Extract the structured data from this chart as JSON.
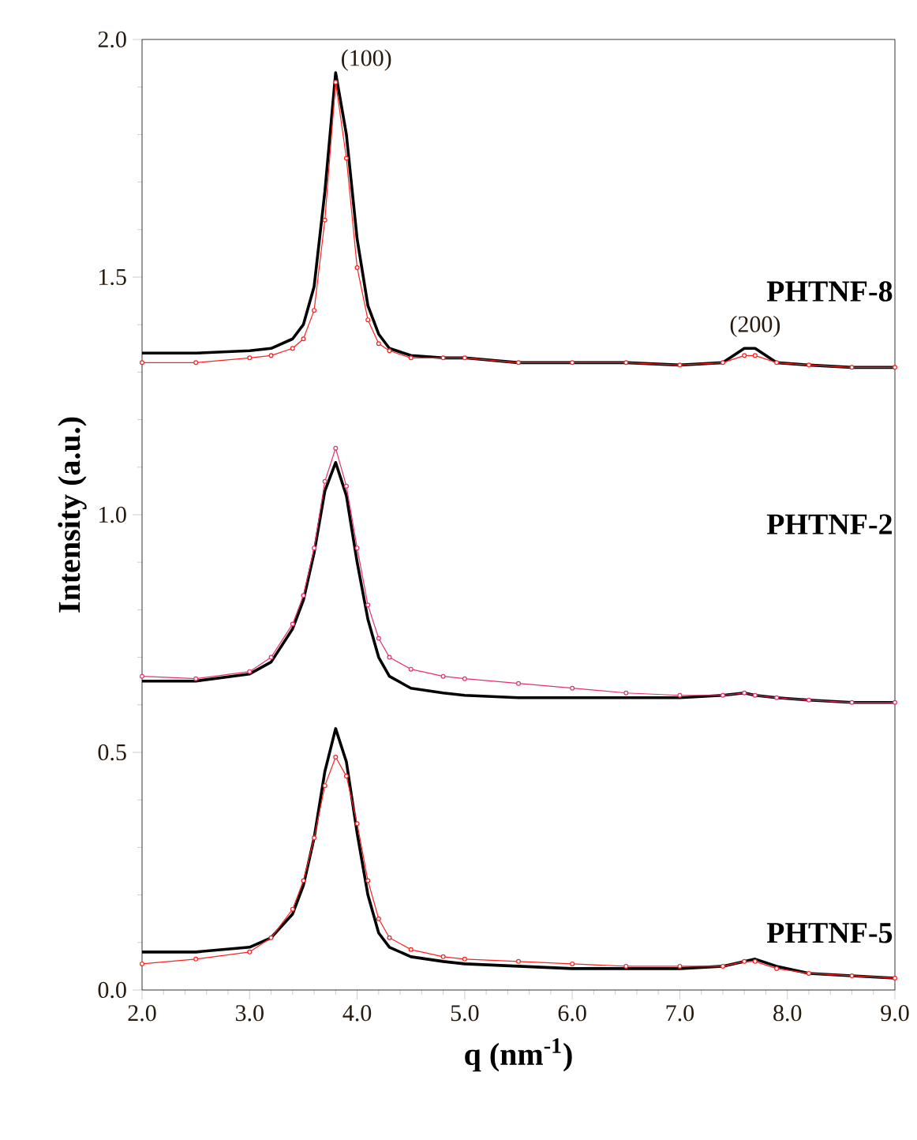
{
  "chart_data": {
    "type": "line",
    "xlabel": "q (nm$^{-1}$)",
    "ylabel": "Intensity (a.u.)",
    "x": [
      2.0,
      2.5,
      3.0,
      3.2,
      3.4,
      3.5,
      3.6,
      3.7,
      3.8,
      3.9,
      4.0,
      4.1,
      4.2,
      4.3,
      4.5,
      4.8,
      5.0,
      5.5,
      6.0,
      6.5,
      7.0,
      7.4,
      7.6,
      7.7,
      7.9,
      8.2,
      8.6,
      9.0
    ],
    "series": [
      {
        "color": "#000000",
        "marker": "none",
        "values": [
          1.34,
          1.34,
          1.345,
          1.35,
          1.37,
          1.4,
          1.48,
          1.68,
          1.93,
          1.8,
          1.58,
          1.44,
          1.38,
          1.35,
          1.335,
          1.33,
          1.33,
          1.32,
          1.32,
          1.32,
          1.315,
          1.32,
          1.35,
          1.35,
          1.32,
          1.315,
          1.31,
          1.31
        ]
      },
      {
        "color": "#ff2020",
        "marker": "circle",
        "values": [
          1.32,
          1.32,
          1.33,
          1.335,
          1.35,
          1.37,
          1.43,
          1.62,
          1.91,
          1.75,
          1.52,
          1.41,
          1.36,
          1.345,
          1.33,
          1.33,
          1.33,
          1.32,
          1.32,
          1.32,
          1.315,
          1.32,
          1.335,
          1.335,
          1.32,
          1.315,
          1.31,
          1.31
        ]
      },
      {
        "color": "#000000",
        "marker": "none",
        "values": [
          0.65,
          0.65,
          0.665,
          0.69,
          0.76,
          0.82,
          0.92,
          1.05,
          1.11,
          1.04,
          0.9,
          0.78,
          0.7,
          0.66,
          0.635,
          0.625,
          0.62,
          0.615,
          0.615,
          0.615,
          0.615,
          0.62,
          0.625,
          0.62,
          0.615,
          0.61,
          0.605,
          0.605
        ]
      },
      {
        "color": "#e8306a",
        "marker": "circle",
        "values": [
          0.66,
          0.655,
          0.67,
          0.7,
          0.77,
          0.83,
          0.93,
          1.07,
          1.14,
          1.06,
          0.93,
          0.81,
          0.74,
          0.7,
          0.675,
          0.66,
          0.655,
          0.645,
          0.635,
          0.625,
          0.62,
          0.62,
          0.625,
          0.62,
          0.615,
          0.61,
          0.605,
          0.605
        ]
      },
      {
        "color": "#000000",
        "marker": "none",
        "values": [
          0.08,
          0.08,
          0.09,
          0.11,
          0.16,
          0.22,
          0.32,
          0.46,
          0.55,
          0.48,
          0.33,
          0.2,
          0.12,
          0.09,
          0.07,
          0.06,
          0.055,
          0.05,
          0.045,
          0.045,
          0.045,
          0.05,
          0.06,
          0.065,
          0.05,
          0.035,
          0.03,
          0.025
        ]
      },
      {
        "color": "#ff2020",
        "marker": "circle",
        "values": [
          0.055,
          0.065,
          0.08,
          0.11,
          0.17,
          0.23,
          0.32,
          0.43,
          0.49,
          0.45,
          0.35,
          0.23,
          0.15,
          0.11,
          0.085,
          0.07,
          0.065,
          0.06,
          0.055,
          0.05,
          0.05,
          0.05,
          0.06,
          0.06,
          0.045,
          0.035,
          0.03,
          0.025
        ]
      }
    ],
    "xlim": [
      2.0,
      9.0
    ],
    "ylim": [
      0.0,
      2.0
    ],
    "xticks": [
      {
        "value": 2,
        "label": "2.0"
      },
      {
        "value": 3,
        "label": "3.0"
      },
      {
        "value": 4,
        "label": "4.0"
      },
      {
        "value": 5,
        "label": "5.0"
      },
      {
        "value": 6,
        "label": "6.0"
      },
      {
        "value": 7,
        "label": "7.0"
      },
      {
        "value": 8,
        "label": "8.0"
      },
      {
        "value": 9,
        "label": "9.0"
      }
    ],
    "yticks": [
      {
        "value": 0,
        "label": "0.0"
      },
      {
        "value": 0.5,
        "label": "0.5"
      },
      {
        "value": 1,
        "label": "1.0"
      },
      {
        "value": 1.5,
        "label": "1.5"
      },
      {
        "value": 2,
        "label": "2.0"
      }
    ],
    "annotations": [
      {
        "text": "(100)",
        "x": 3.8,
        "y": 1.93
      },
      {
        "text": "(200)",
        "x": 7.65,
        "y": 1.35
      },
      "PHTNF-8",
      "PHTNF-2",
      "PHTNF-5"
    ]
  }
}
